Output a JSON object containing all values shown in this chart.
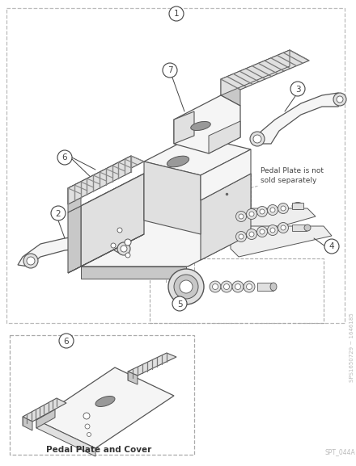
{
  "bg_color": "#ffffff",
  "line_color": "#444444",
  "part_fill_light": "#f5f5f5",
  "part_fill_mid": "#e0e0e0",
  "part_fill_dark": "#c8c8c8",
  "part_fill_tread": "#aaaaaa",
  "edge_color": "#555555",
  "dashed_color": "#aaaaaa",
  "text_color": "#333333",
  "annotation_text": "Pedal Plate is not\nsold separately",
  "bottom_caption": "Pedal Plate and Cover",
  "side_text": "SPS1650729 ~ 1646185",
  "side_text2": "SPT_044A",
  "fig_width": 4.4,
  "fig_height": 5.77,
  "dpi": 100
}
